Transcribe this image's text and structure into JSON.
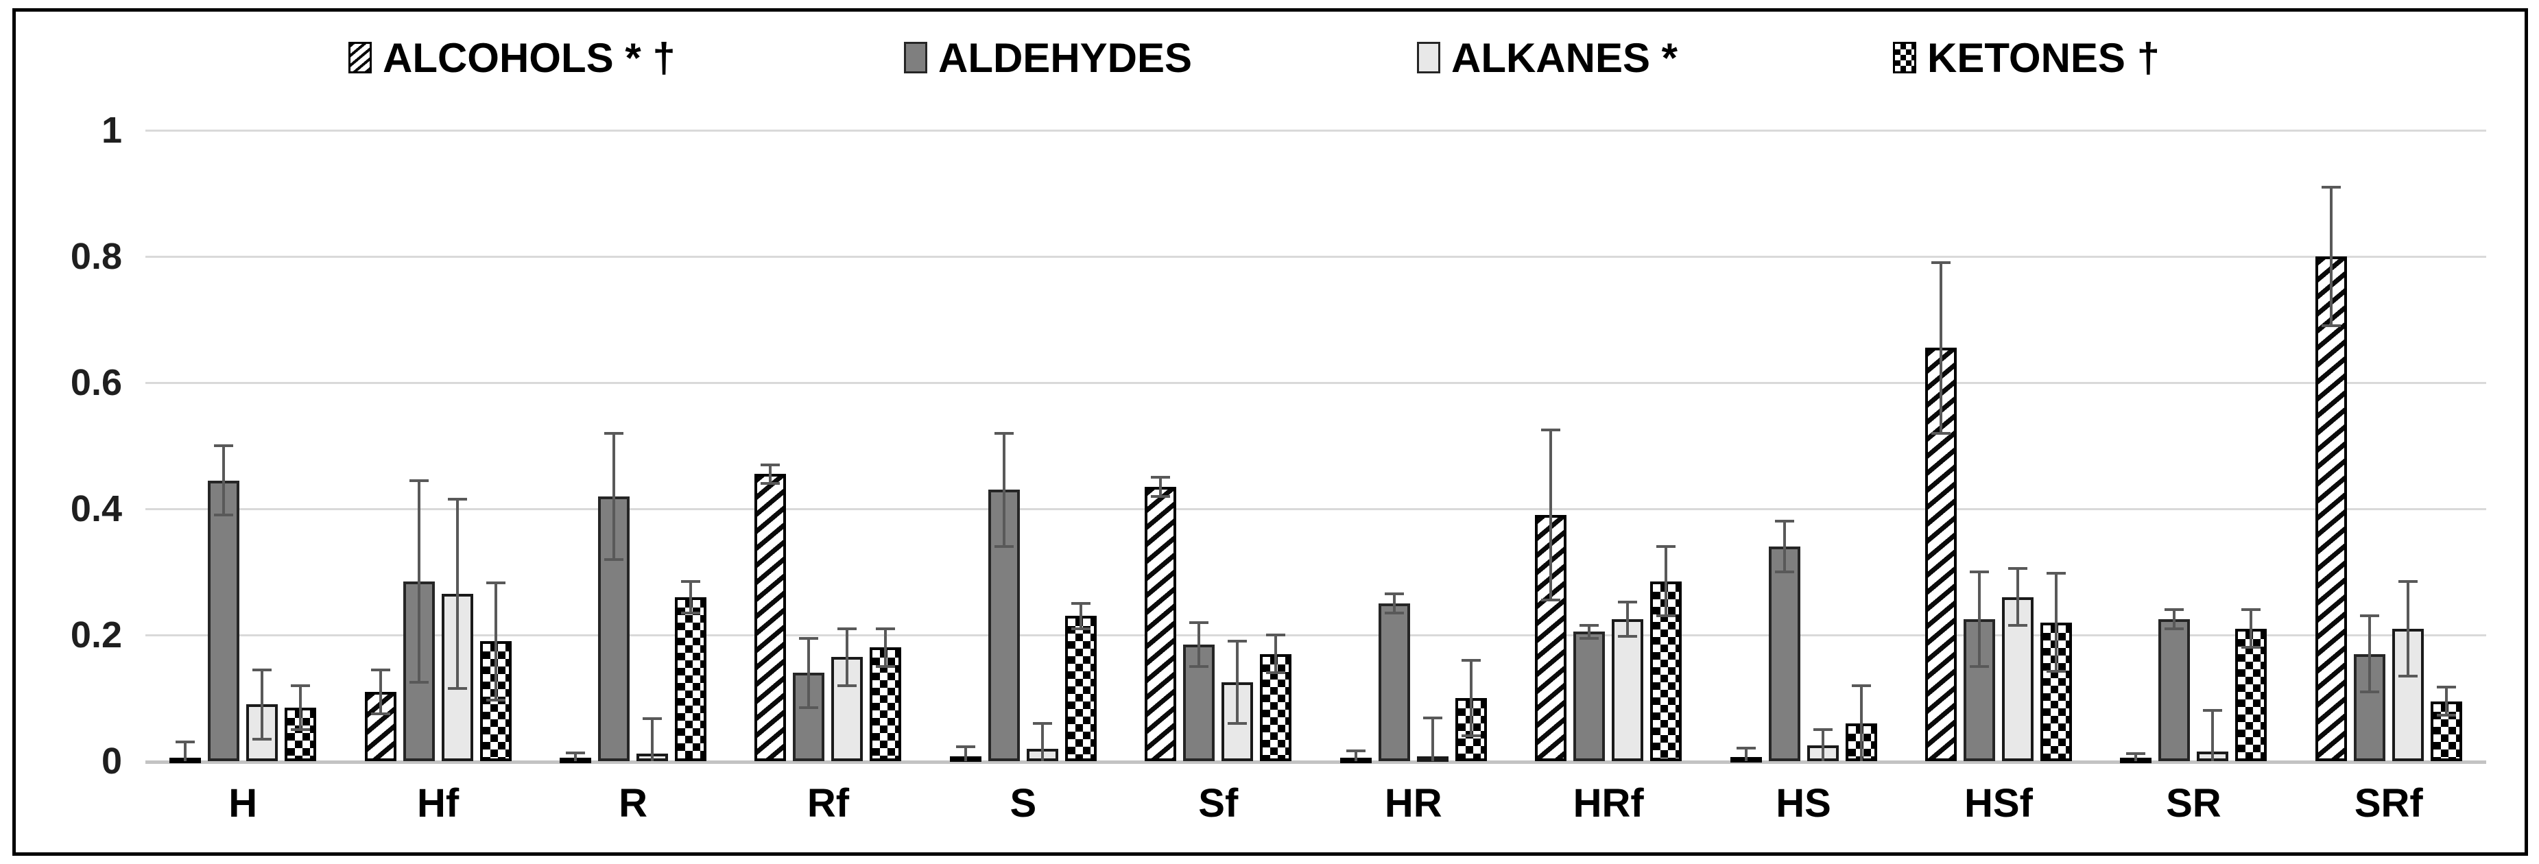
{
  "chart_data": {
    "type": "bar",
    "title": "",
    "xlabel": "",
    "ylabel": "",
    "categories": [
      "H",
      "Hf",
      "R",
      "Rf",
      "S",
      "Sf",
      "HR",
      "HRf",
      "HS",
      "HSf",
      "SR",
      "SRf"
    ],
    "series": [
      {
        "name": "ALCOHOLS * †",
        "pattern": "diagonal-hatch",
        "values": [
          0.005,
          0.11,
          0.005,
          0.455,
          0.008,
          0.435,
          0.004,
          0.39,
          0.006,
          0.655,
          0.004,
          0.8
        ],
        "errors": [
          0.025,
          0.035,
          0.008,
          0.015,
          0.015,
          0.015,
          0.012,
          0.135,
          0.015,
          0.135,
          0.008,
          0.11
        ]
      },
      {
        "name": "ALDEHYDES",
        "pattern": "solid-dark-gray",
        "color": "#7f7f7f",
        "values": [
          0.445,
          0.285,
          0.42,
          0.14,
          0.43,
          0.185,
          0.25,
          0.205,
          0.34,
          0.225,
          0.225,
          0.17
        ],
        "errors": [
          0.055,
          0.16,
          0.1,
          0.055,
          0.09,
          0.035,
          0.015,
          0.01,
          0.04,
          0.075,
          0.015,
          0.06
        ]
      },
      {
        "name": "ALKANES *",
        "pattern": "solid-light-gray",
        "color": "#e8e8e8",
        "values": [
          0.09,
          0.265,
          0.012,
          0.165,
          0.02,
          0.125,
          0.008,
          0.225,
          0.025,
          0.26,
          0.015,
          0.21
        ],
        "errors": [
          0.055,
          0.15,
          0.055,
          0.045,
          0.04,
          0.065,
          0.06,
          0.027,
          0.025,
          0.045,
          0.065,
          0.075
        ]
      },
      {
        "name": "KETONES †",
        "pattern": "checkerboard",
        "values": [
          0.085,
          0.19,
          0.26,
          0.18,
          0.23,
          0.17,
          0.1,
          0.285,
          0.06,
          0.22,
          0.21,
          0.095
        ],
        "errors": [
          0.035,
          0.093,
          0.025,
          0.03,
          0.02,
          0.03,
          0.06,
          0.055,
          0.06,
          0.078,
          0.03,
          0.022
        ]
      }
    ],
    "error_bars": true,
    "ylim": [
      0,
      1
    ],
    "yticks": [
      0,
      0.2,
      0.4,
      0.6,
      0.8,
      1
    ],
    "ytick_labels": [
      "0",
      "0.2",
      "0.4",
      "0.6",
      "0.8",
      "1"
    ],
    "grid": "horizontal-light-gray",
    "legend_position": "top",
    "grid_color": "#d9d9d9",
    "error_bar_color": "#595959"
  }
}
